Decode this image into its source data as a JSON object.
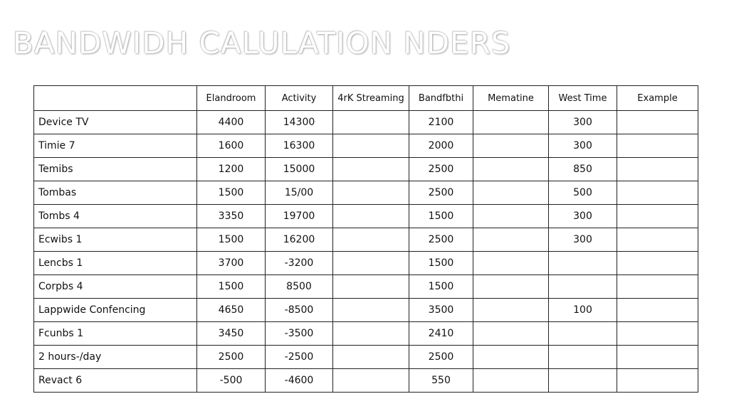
{
  "header": {
    "title": "BANDWIDH CALULATION NDERS"
  },
  "table": {
    "header": [
      null,
      "Elandroom",
      "Activity",
      "4rK Streaming",
      "Bandfbthi",
      "Mematine",
      "West Time",
      "Example"
    ],
    "rows": [
      [
        "Device TV",
        "4400",
        "14300",
        null,
        "2100",
        null,
        "300",
        null
      ],
      [
        "Timie 7",
        "1600",
        "16300",
        null,
        "2000",
        null,
        "300",
        null
      ],
      [
        "Temibs",
        "1200",
        "15000",
        null,
        "2500",
        null,
        "850",
        null
      ],
      [
        "Tombas",
        "1500",
        "15/00",
        null,
        "2500",
        null,
        "500",
        null
      ],
      [
        "Tombs 4",
        "3350",
        "19700",
        null,
        "1500",
        null,
        "300",
        null
      ],
      [
        "Ecwibs 1",
        "1500",
        "16200",
        null,
        "2500",
        null,
        "300",
        null
      ],
      [
        "Lencbs 1",
        "3700",
        "-3200",
        null,
        "1500",
        null,
        null,
        null
      ],
      [
        "Corpbs 4",
        "1500",
        "8500",
        null,
        "1500",
        null,
        null,
        null
      ],
      [
        "Lappwide Confencing",
        "4650",
        "-8500",
        null,
        "3500",
        null,
        "100",
        null
      ],
      [
        "Fcunbs 1",
        "3450",
        "-3500",
        null,
        "2410",
        null,
        null,
        null
      ],
      [
        "2 hours-/day",
        "2500",
        "-2500",
        null,
        "2500",
        null,
        null,
        null
      ],
      [
        "Revact 6",
        "-500",
        "-4600",
        null,
        "550",
        null,
        null,
        null
      ]
    ]
  }
}
